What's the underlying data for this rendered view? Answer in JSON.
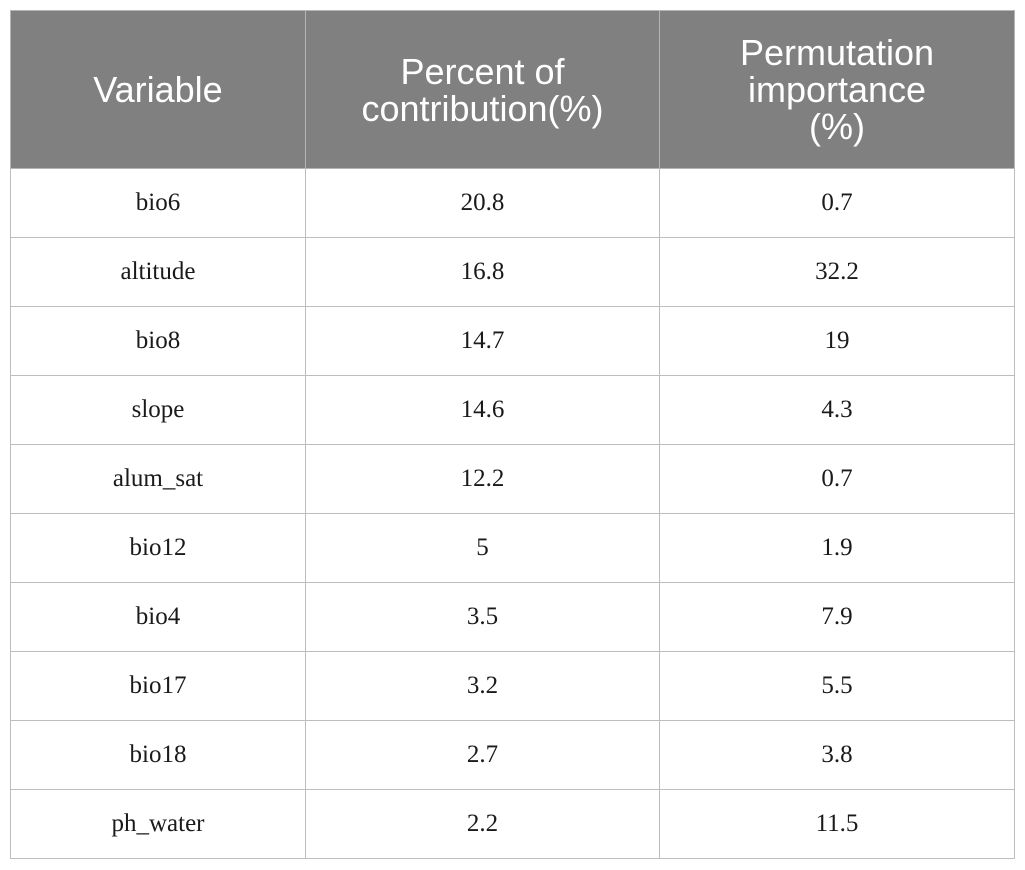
{
  "table": {
    "headers": [
      "Variable",
      "Percent of\ncontribution(%)",
      "Permutation\nimportance\n(%)"
    ],
    "rows": [
      [
        "bio6",
        "20.8",
        "0.7"
      ],
      [
        "altitude",
        "16.8",
        "32.2"
      ],
      [
        "bio8",
        "14.7",
        "19"
      ],
      [
        "slope",
        "14.6",
        "4.3"
      ],
      [
        "alum_sat",
        "12.2",
        "0.7"
      ],
      [
        "bio12",
        "5",
        "1.9"
      ],
      [
        "bio4",
        "3.5",
        "7.9"
      ],
      [
        "bio17",
        "3.2",
        "5.5"
      ],
      [
        "bio18",
        "2.7",
        "3.8"
      ],
      [
        "ph_water",
        "2.2",
        "11.5"
      ]
    ]
  },
  "colors": {
    "header_bg": "#808080",
    "header_text": "#ffffff",
    "border": "#bdbdbd"
  }
}
